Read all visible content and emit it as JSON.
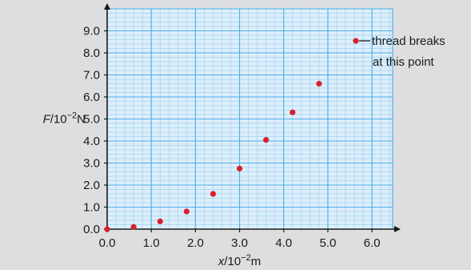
{
  "chart_data": {
    "type": "scatter",
    "title": "",
    "xlabel": {
      "symbol": "x",
      "unit_prefix": "/10",
      "exponent": "−2",
      "unit": "m"
    },
    "ylabel": {
      "symbol": "F",
      "unit_prefix": "/10",
      "exponent": "−2",
      "unit": "N"
    },
    "xlim": [
      0,
      6.6
    ],
    "ylim": [
      0,
      10.0
    ],
    "xticks": [
      0.0,
      1.0,
      2.0,
      3.0,
      4.0,
      5.0,
      6.0
    ],
    "xtick_labels": [
      "0.0",
      "1.0",
      "2.0",
      "3.0",
      "4.0",
      "5.0",
      "6.0"
    ],
    "yticks": [
      0.0,
      1.0,
      2.0,
      3.0,
      4.0,
      5.0,
      6.0,
      7.0,
      8.0,
      9.0
    ],
    "ytick_labels": [
      "0.0",
      "1.0",
      "2.0",
      "3.0",
      "4.0",
      "5.0",
      "6.0",
      "7.0",
      "8.0",
      "9.0"
    ],
    "grid": true,
    "minor_grid_step": 0.2,
    "series": [
      {
        "x": [
          0.0,
          0.6,
          1.2,
          1.8,
          2.4,
          3.0,
          3.6,
          4.2,
          4.8
        ],
        "y": [
          0.0,
          0.1,
          0.35,
          0.8,
          1.6,
          2.75,
          4.05,
          5.3,
          6.6
        ]
      }
    ],
    "legend": {
      "placement": "top-right",
      "lines": [
        "thread breaks",
        "at this point"
      ]
    },
    "colors": {
      "background": "#dcdee0",
      "plot_background": "#ddeefa",
      "grid_major": "#4aaee6",
      "grid_minor": "#9fd3f3",
      "axis": "#1a1a1a",
      "marker": "#d7202b"
    }
  }
}
